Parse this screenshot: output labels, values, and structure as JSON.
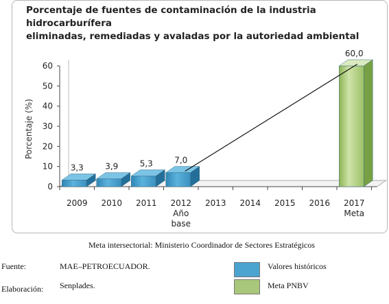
{
  "chart_data": {
    "type": "bar",
    "title_lines": [
      "Porcentaje de fuentes de contaminación de la industria hidrocarburífera",
      "eliminadas, remediadas y avaladas por la autoriedad ambiental"
    ],
    "ylabel": "Porcentaje (%)",
    "ylim": [
      0,
      60
    ],
    "yticks": [
      "0",
      "10",
      "20",
      "30",
      "40",
      "50",
      "60"
    ],
    "categories": [
      {
        "label": "2009",
        "sub": ""
      },
      {
        "label": "2010",
        "sub": ""
      },
      {
        "label": "2011",
        "sub": ""
      },
      {
        "label": "2012",
        "sub": "Año base"
      },
      {
        "label": "2013",
        "sub": ""
      },
      {
        "label": "2014",
        "sub": ""
      },
      {
        "label": "2015",
        "sub": ""
      },
      {
        "label": "2016",
        "sub": ""
      },
      {
        "label": "2017",
        "sub": "Meta"
      }
    ],
    "series": [
      {
        "name": "Valores históricos",
        "values": [
          3.3,
          3.9,
          5.3,
          7.0,
          null,
          null,
          null,
          null,
          null
        ],
        "labels": [
          "3,3",
          "3,9",
          "5,3",
          "7,0",
          "",
          "",
          "",
          "",
          ""
        ],
        "color": "#4ba3cf"
      },
      {
        "name": "Meta PNBV",
        "values": [
          null,
          null,
          null,
          null,
          null,
          null,
          null,
          null,
          60.0
        ],
        "labels": [
          "",
          "",
          "",
          "",
          "",
          "",
          "",
          "",
          "60,0"
        ],
        "color": "#a8c77a"
      }
    ],
    "trend_line": {
      "from_index": 3,
      "to_index": 8
    },
    "grid": false,
    "legend": "bottom-right"
  },
  "notes": {
    "intersectoral": "Meta intersectorial: Ministerio Coordinador de Sectores Estratégicos",
    "source_label": "Fuente:",
    "source_value": "MAE–PETROECUADOR.",
    "elaboration_label": "Elaboración:",
    "elaboration_value": "Senplades."
  },
  "legend_items": [
    {
      "label": "Valores históricos",
      "color": "#4ba3cf"
    },
    {
      "label": "Meta PNBV",
      "color": "#a8c77a"
    }
  ]
}
